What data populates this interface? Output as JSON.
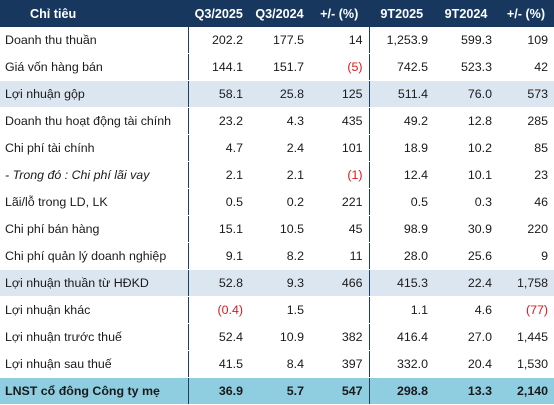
{
  "header": {
    "label": "Chỉ tiêu",
    "columns": [
      "Q3/2025",
      "Q3/2024",
      "+/- (%)",
      "9T2025",
      "9T2024",
      "+/- (%)"
    ]
  },
  "rows": [
    {
      "label": "Doanh thu thuần",
      "cells": [
        "202.2",
        "177.5",
        "14",
        "1,253.9",
        "599.3",
        "109"
      ]
    },
    {
      "label": "Giá vốn hàng bán",
      "cells": [
        "144.1",
        "151.7",
        "(5)",
        "742.5",
        "523.3",
        "42"
      ]
    },
    {
      "label": "Lợi nhuận gộp",
      "cells": [
        "58.1",
        "25.8",
        "125",
        "511.4",
        "76.0",
        "573"
      ]
    },
    {
      "label": "Doanh thu hoạt động tài chính",
      "cells": [
        "23.2",
        "4.3",
        "435",
        "49.2",
        "12.8",
        "285"
      ]
    },
    {
      "label": "Chi phí tài chính",
      "cells": [
        "4.7",
        "2.4",
        "101",
        "18.9",
        "10.2",
        "85"
      ]
    },
    {
      "label": "- Trong đó : Chi phí lãi vay",
      "cells": [
        "2.1",
        "2.1",
        "(1)",
        "12.4",
        "10.1",
        "23"
      ]
    },
    {
      "label": "Lãi/lỗ trong LD, LK",
      "cells": [
        "0.5",
        "0.2",
        "221",
        "0.5",
        "0.3",
        "46"
      ]
    },
    {
      "label": "Chi phí bán hàng",
      "cells": [
        "15.1",
        "10.5",
        "45",
        "98.9",
        "30.9",
        "220"
      ]
    },
    {
      "label": "Chi phí quản lý doanh nghiệp",
      "cells": [
        "9.1",
        "8.2",
        "11",
        "28.0",
        "25.6",
        "9"
      ]
    },
    {
      "label": "Lợi nhuận thuần từ HĐKD",
      "cells": [
        "52.8",
        "9.3",
        "466",
        "415.3",
        "22.4",
        "1,758"
      ]
    },
    {
      "label": "Lợi nhuận khác",
      "cells": [
        "(0.4)",
        "1.5",
        "",
        "1.1",
        "4.6",
        "(77)"
      ]
    },
    {
      "label": "Lợi nhuận trước thuế",
      "cells": [
        "52.4",
        "10.9",
        "382",
        "416.4",
        "27.0",
        "1,445"
      ]
    },
    {
      "label": "Lợi nhuận sau thuế",
      "cells": [
        "41.5",
        "8.4",
        "397",
        "332.0",
        "20.4",
        "1,530"
      ]
    },
    {
      "label": "LNST cổ đông Công ty mẹ",
      "cells": [
        "36.9",
        "5.7",
        "547",
        "298.8",
        "13.3",
        "2,140"
      ]
    }
  ],
  "colors": {
    "header_bg": "#17375e",
    "shade_bg": "#dce6f1",
    "total_bg": "#8fcde0",
    "negative": "#e0161b"
  }
}
